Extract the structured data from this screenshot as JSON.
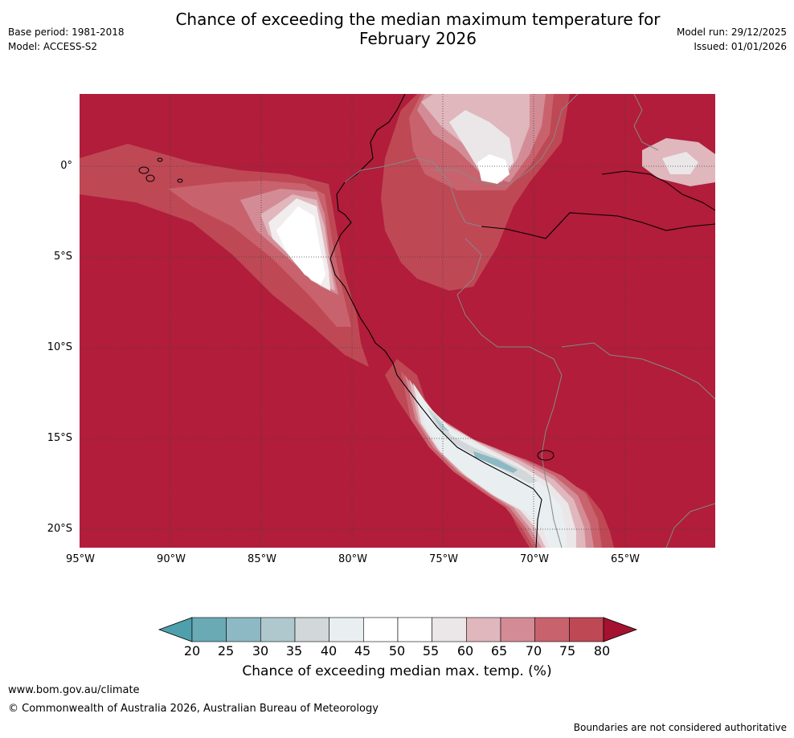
{
  "header": {
    "title_line1": "Chance of exceeding the median maximum temperature for",
    "title_line2": "February 2026",
    "base_period": "Base period: 1981-2018",
    "model": "Model: ACCESS-S2",
    "model_run": "Model run: 29/12/2025",
    "issued": "Issued: 01/01/2026"
  },
  "map": {
    "region": "Western South America and eastern Pacific",
    "extent": {
      "lon": [
        -95,
        -60
      ],
      "lat": [
        -21,
        4
      ]
    },
    "lat_labels": [
      "0°",
      "5°S",
      "10°S",
      "15°S",
      "20°S"
    ],
    "lon_labels": [
      "95°W",
      "90°W",
      "85°W",
      "80°W",
      "75°W",
      "70°W",
      "65°W"
    ],
    "gridlines": "dotted",
    "dominant_category": ">80%"
  },
  "legend": {
    "ticks": [
      "20",
      "25",
      "30",
      "35",
      "40",
      "45",
      "50",
      "55",
      "60",
      "65",
      "70",
      "75",
      "80"
    ],
    "colors": [
      "#6aaab5",
      "#8cb9c4",
      "#aec8ce",
      "#d2d8da",
      "#e9eef1",
      "#ffffff",
      "#ffffff",
      "#ebe6e8",
      "#dfb7bd",
      "#d38c95",
      "#c8636e",
      "#bf4855",
      "#b11d3a"
    ],
    "label": "Chance of exceeding median max. temp. (%)"
  },
  "footer": {
    "url": "www.bom.gov.au/climate",
    "copyright": "© Commonwealth of Australia 2026, Australian Bureau of Meteorology",
    "disclaimer": "Boundaries are not considered authoritative"
  }
}
